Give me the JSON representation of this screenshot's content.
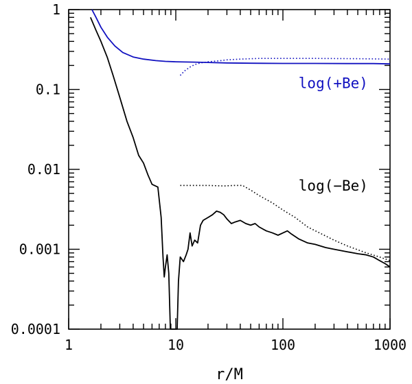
{
  "chart_data": {
    "type": "line",
    "title": "",
    "xlabel": "r/M",
    "ylabel": "",
    "xscale": "log",
    "yscale": "log",
    "xlim": [
      1,
      1000
    ],
    "ylim": [
      0.0001,
      1
    ],
    "grid": false,
    "x_ticks": [
      {
        "value": 1,
        "label": "1"
      },
      {
        "value": 10,
        "label": "10"
      },
      {
        "value": 100,
        "label": "100"
      },
      {
        "value": 1000,
        "label": "1000"
      }
    ],
    "y_ticks": [
      {
        "value": 1,
        "label": "1"
      },
      {
        "value": 0.1,
        "label": "0.1"
      },
      {
        "value": 0.01,
        "label": "0.01"
      },
      {
        "value": 0.001,
        "label": "0.001"
      },
      {
        "value": 0.0001,
        "label": "0.0001"
      }
    ],
    "series": [
      {
        "name": "+Be (solid)",
        "color": "#1010c0",
        "style": "solid",
        "points": [
          [
            1.65,
            1.0
          ],
          [
            1.8,
            0.8
          ],
          [
            2.0,
            0.6
          ],
          [
            2.3,
            0.45
          ],
          [
            2.7,
            0.35
          ],
          [
            3.2,
            0.29
          ],
          [
            4.0,
            0.255
          ],
          [
            5.0,
            0.24
          ],
          [
            6.5,
            0.23
          ],
          [
            8.0,
            0.225
          ],
          [
            10,
            0.222
          ],
          [
            15,
            0.22
          ],
          [
            20,
            0.218
          ],
          [
            30,
            0.215
          ],
          [
            50,
            0.213
          ],
          [
            100,
            0.212
          ],
          [
            200,
            0.212
          ],
          [
            400,
            0.211
          ],
          [
            700,
            0.211
          ],
          [
            1000,
            0.209
          ]
        ]
      },
      {
        "name": "+Be (dotted)",
        "color": "#1010c0",
        "style": "dotted",
        "points": [
          [
            11,
            0.15
          ],
          [
            12,
            0.17
          ],
          [
            13.5,
            0.19
          ],
          [
            15,
            0.205
          ],
          [
            17,
            0.215
          ],
          [
            20,
            0.222
          ],
          [
            25,
            0.228
          ],
          [
            30,
            0.235
          ],
          [
            40,
            0.24
          ],
          [
            60,
            0.245
          ],
          [
            100,
            0.245
          ],
          [
            200,
            0.245
          ],
          [
            500,
            0.243
          ],
          [
            1000,
            0.24
          ]
        ]
      },
      {
        "name": "-Be (solid)",
        "color": "#000000",
        "style": "solid",
        "points": [
          [
            1.6,
            0.8
          ],
          [
            1.8,
            0.55
          ],
          [
            2.0,
            0.4
          ],
          [
            2.3,
            0.25
          ],
          [
            2.6,
            0.15
          ],
          [
            3.0,
            0.08
          ],
          [
            3.5,
            0.04
          ],
          [
            4.0,
            0.025
          ],
          [
            4.5,
            0.015
          ],
          [
            5.0,
            0.012
          ],
          [
            5.5,
            0.0085
          ],
          [
            6.0,
            0.0065
          ],
          [
            6.8,
            0.006
          ],
          [
            7.3,
            0.0025
          ],
          [
            7.6,
            0.0008
          ],
          [
            7.8,
            0.00045
          ],
          [
            8.0,
            0.0006
          ],
          [
            8.3,
            0.00085
          ],
          [
            8.6,
            0.0005
          ],
          [
            8.9,
            0.0001
          ],
          [
            10.3,
            0.0001
          ],
          [
            10.6,
            0.0004
          ],
          [
            11,
            0.0008
          ],
          [
            11.8,
            0.0007
          ],
          [
            12.5,
            0.00085
          ],
          [
            13,
            0.001
          ],
          [
            13.6,
            0.0016
          ],
          [
            14.2,
            0.0011
          ],
          [
            15,
            0.0013
          ],
          [
            16,
            0.0012
          ],
          [
            17,
            0.002
          ],
          [
            18,
            0.0023
          ],
          [
            20,
            0.0025
          ],
          [
            22,
            0.0027
          ],
          [
            24,
            0.003
          ],
          [
            26,
            0.0029
          ],
          [
            28,
            0.0027
          ],
          [
            30,
            0.0024
          ],
          [
            33,
            0.0021
          ],
          [
            36,
            0.0022
          ],
          [
            40,
            0.0023
          ],
          [
            45,
            0.0021
          ],
          [
            50,
            0.002
          ],
          [
            55,
            0.0021
          ],
          [
            60,
            0.0019
          ],
          [
            70,
            0.0017
          ],
          [
            80,
            0.0016
          ],
          [
            90,
            0.0015
          ],
          [
            100,
            0.0016
          ],
          [
            110,
            0.0017
          ],
          [
            120,
            0.00155
          ],
          [
            140,
            0.00135
          ],
          [
            170,
            0.0012
          ],
          [
            200,
            0.00115
          ],
          [
            250,
            0.00105
          ],
          [
            300,
            0.001
          ],
          [
            400,
            0.00093
          ],
          [
            500,
            0.00088
          ],
          [
            600,
            0.00085
          ],
          [
            700,
            0.0008
          ],
          [
            800,
            0.00072
          ],
          [
            900,
            0.00066
          ],
          [
            1000,
            0.0006
          ]
        ]
      },
      {
        "name": "-Be (dotted)",
        "color": "#000000",
        "style": "dotted",
        "points": [
          [
            11,
            0.0063
          ],
          [
            15,
            0.0063
          ],
          [
            20,
            0.0063
          ],
          [
            28,
            0.0062
          ],
          [
            35,
            0.0063
          ],
          [
            42,
            0.0063
          ],
          [
            50,
            0.0055
          ],
          [
            60,
            0.0047
          ],
          [
            80,
            0.0038
          ],
          [
            100,
            0.0031
          ],
          [
            130,
            0.0025
          ],
          [
            170,
            0.0019
          ],
          [
            220,
            0.0016
          ],
          [
            300,
            0.0013
          ],
          [
            400,
            0.0011
          ],
          [
            600,
            0.0009
          ],
          [
            800,
            0.0008
          ],
          [
            1000,
            0.00072
          ]
        ]
      }
    ],
    "annotations": [
      {
        "text": "log(+Be)",
        "x": 140,
        "y": 0.12,
        "color": "#1010c0"
      },
      {
        "text": "log(−Be)",
        "x": 140,
        "y": 0.0062,
        "color": "#000000"
      }
    ]
  }
}
